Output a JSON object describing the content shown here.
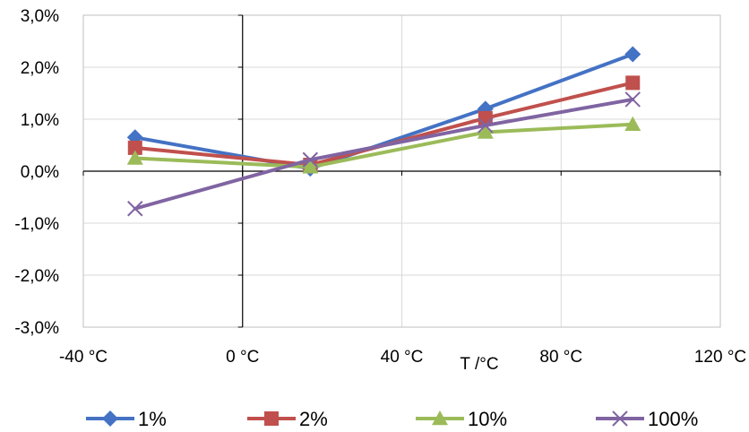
{
  "chart_data": {
    "type": "line",
    "xlabel": "T /°C",
    "x_tick_labels": [
      "-40 °C",
      "0 °C",
      "40 °C",
      "80 °C",
      "120 °C"
    ],
    "x_ticks": [
      -40,
      0,
      40,
      80,
      120
    ],
    "y_tick_labels": [
      "3,0%",
      "2,0%",
      "1,0%",
      "0,0%",
      "-1,0%",
      "-2,0%",
      "-3,0%"
    ],
    "y_ticks": [
      3,
      2,
      1,
      0,
      -1,
      -2,
      -3
    ],
    "xlim": [
      -40,
      120
    ],
    "ylim": [
      -3,
      3
    ],
    "y_unit": "%",
    "grid": true,
    "legend_position": "bottom",
    "series": [
      {
        "name": "1%",
        "color": "#4472C4",
        "marker": "diamond",
        "x": [
          -27,
          17,
          61,
          98
        ],
        "y": [
          0.65,
          0.05,
          1.2,
          2.25
        ]
      },
      {
        "name": "2%",
        "color": "#C0504D",
        "marker": "square",
        "x": [
          -27,
          17,
          61,
          98
        ],
        "y": [
          0.45,
          0.12,
          1.02,
          1.7
        ]
      },
      {
        "name": "10%",
        "color": "#9BBB59",
        "marker": "triangle",
        "x": [
          -27,
          17,
          61,
          98
        ],
        "y": [
          0.25,
          0.08,
          0.75,
          0.9
        ]
      },
      {
        "name": "100%",
        "color": "#8064A2",
        "marker": "x",
        "x": [
          -27,
          17,
          61,
          98
        ],
        "y": [
          -0.72,
          0.22,
          0.88,
          1.38
        ]
      }
    ]
  }
}
